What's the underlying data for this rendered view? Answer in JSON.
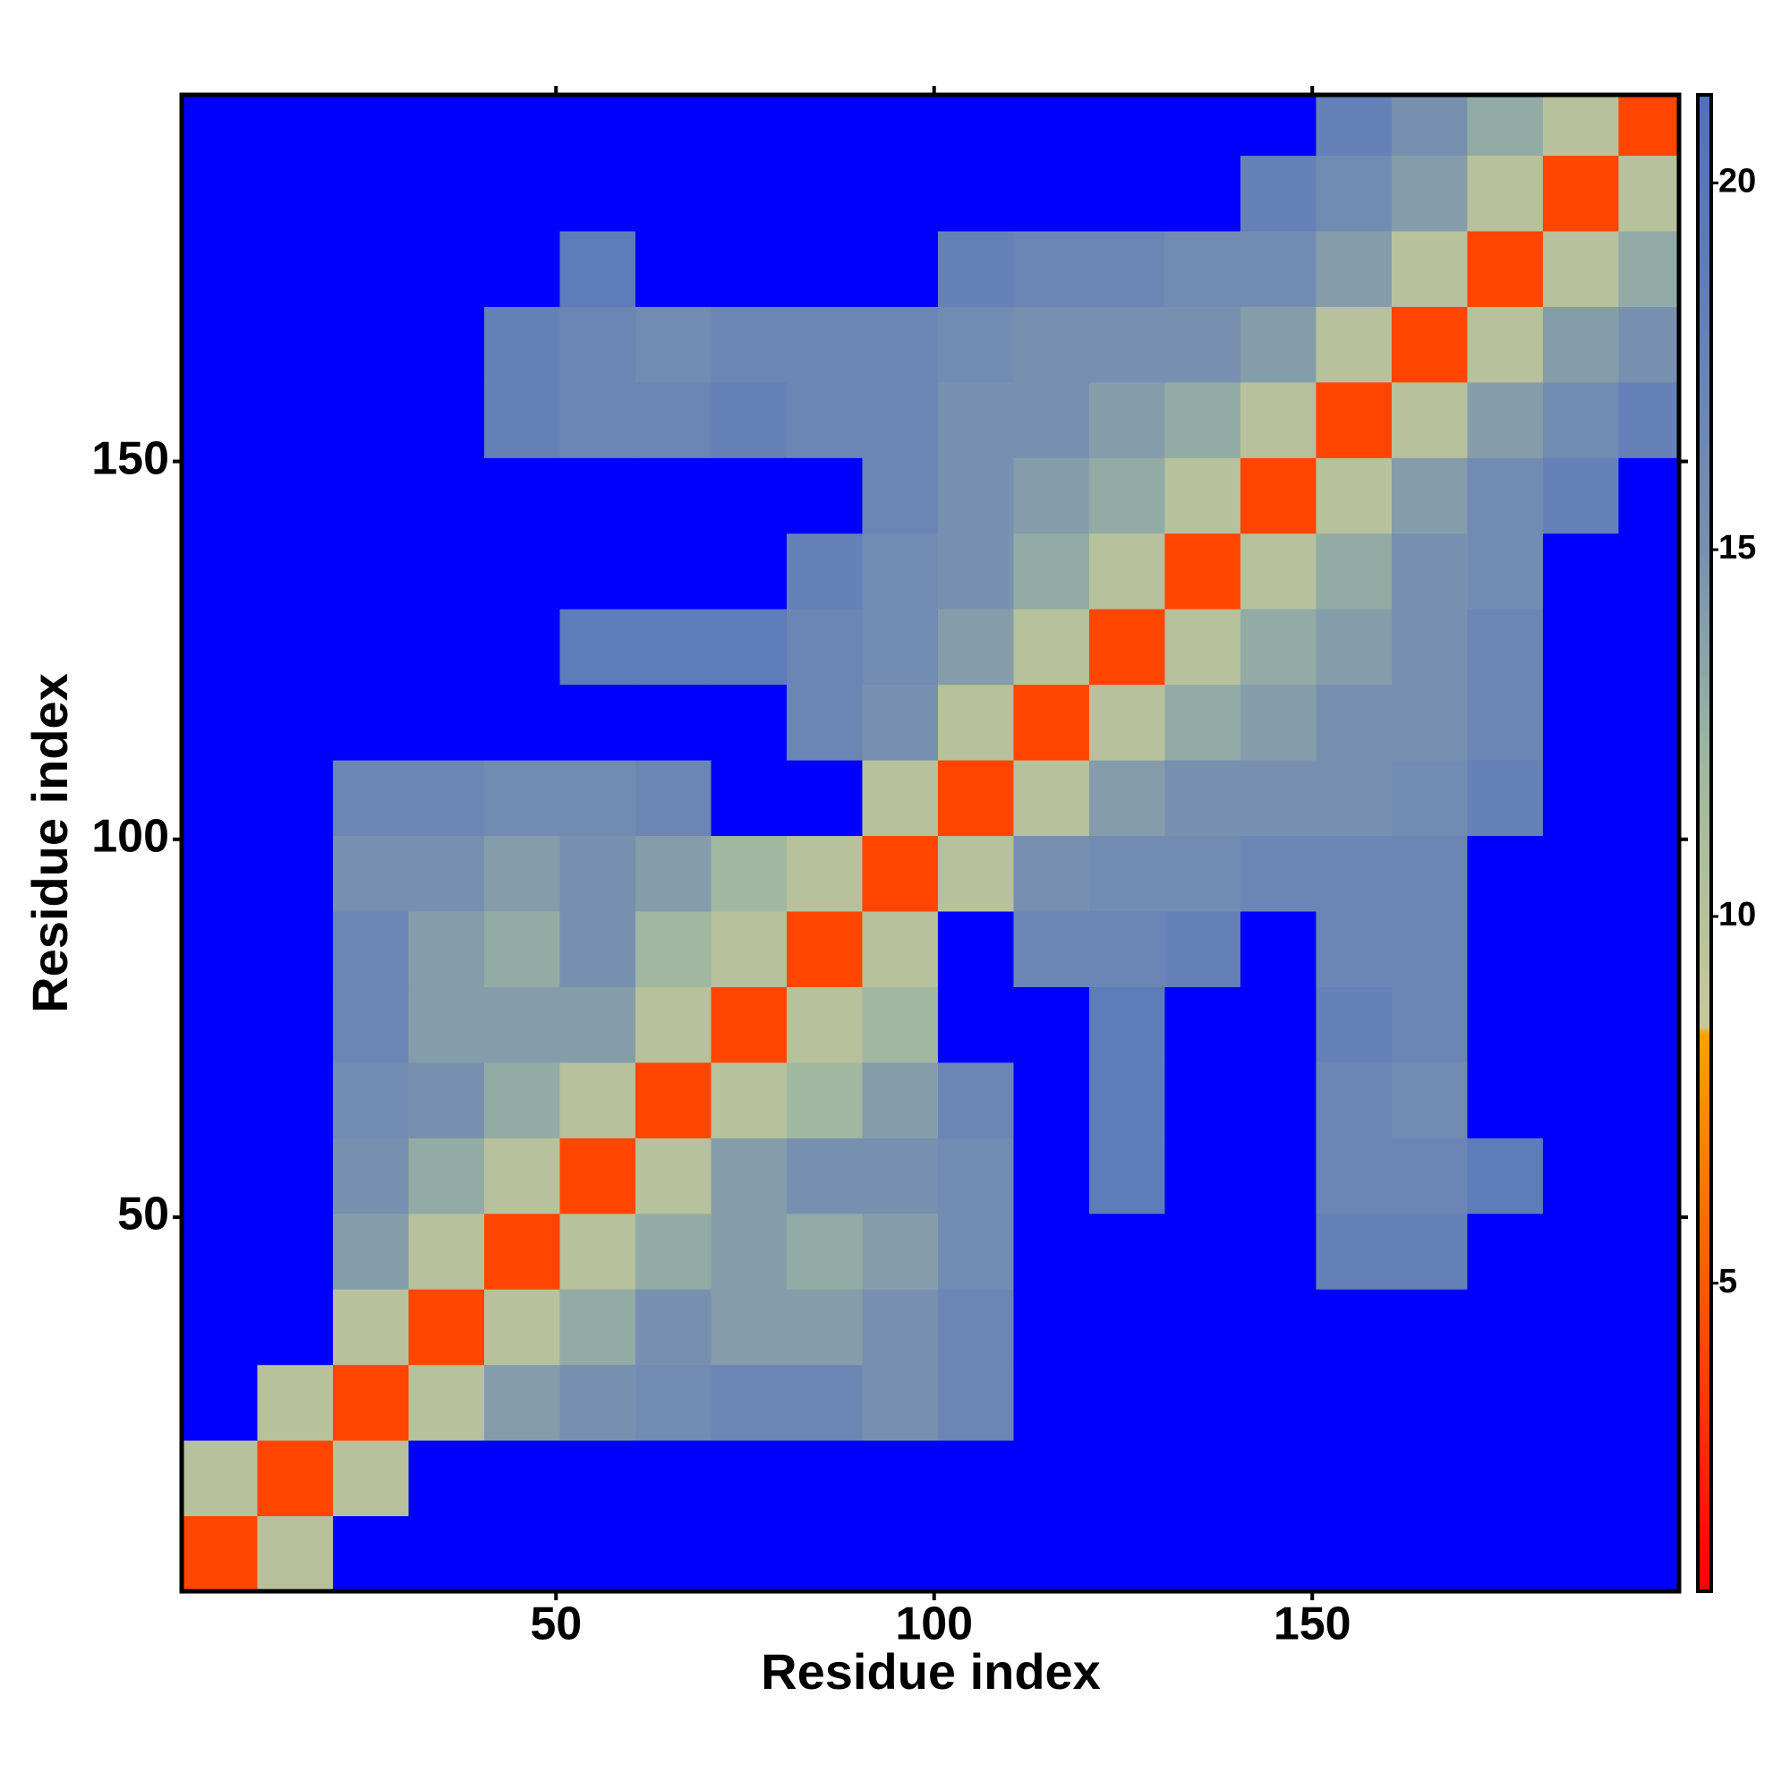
{
  "chart_data": {
    "type": "heatmap",
    "xlabel": "Residue index",
    "ylabel": "Residue index",
    "x_edges": [
      0.5,
      10.5,
      20.5,
      30.5,
      40.5,
      50.5,
      60.5,
      70.5,
      80.5,
      90.5,
      100.5,
      110.5,
      120.5,
      130.5,
      140.5,
      150.5,
      160.5,
      170.5,
      180.5,
      190.5,
      198.5
    ],
    "y_edges": [
      0.5,
      10.5,
      20.5,
      30.5,
      40.5,
      50.5,
      60.5,
      70.5,
      80.5,
      90.5,
      100.5,
      110.5,
      120.5,
      130.5,
      140.5,
      150.5,
      160.5,
      170.5,
      180.5,
      190.5,
      198.5
    ],
    "xlim": [
      0.5,
      198.5
    ],
    "ylim": [
      0.5,
      198.5
    ],
    "xticks": [
      50,
      100,
      150
    ],
    "yticks": [
      50,
      100,
      150
    ],
    "z": [
      [
        4,
        10,
        22,
        22,
        22,
        22,
        22,
        22,
        22,
        22,
        22,
        22,
        22,
        22,
        22,
        22,
        22,
        22,
        22,
        22
      ],
      [
        10,
        4,
        10,
        22,
        22,
        22,
        22,
        22,
        22,
        22,
        22,
        22,
        22,
        22,
        22,
        22,
        22,
        22,
        22,
        22
      ],
      [
        22,
        10,
        4,
        10,
        14,
        15,
        16,
        17,
        17,
        15,
        17,
        22,
        22,
        22,
        22,
        22,
        22,
        22,
        22,
        22
      ],
      [
        22,
        22,
        10,
        4,
        10,
        13,
        15,
        14,
        14,
        15,
        17,
        22,
        22,
        22,
        22,
        22,
        22,
        22,
        22,
        22
      ],
      [
        22,
        22,
        14,
        10,
        4,
        10,
        13,
        14,
        13,
        14,
        16,
        22,
        22,
        22,
        22,
        18,
        18,
        22,
        22,
        22
      ],
      [
        22,
        22,
        15,
        13,
        10,
        4,
        10,
        14,
        15,
        15,
        16,
        22,
        19,
        22,
        22,
        17,
        17,
        19,
        22,
        22
      ],
      [
        22,
        22,
        16,
        15,
        13,
        10,
        4,
        10,
        12,
        14,
        17,
        22,
        19,
        22,
        22,
        17,
        16,
        22,
        22,
        22
      ],
      [
        22,
        22,
        17,
        14,
        14,
        14,
        10,
        4,
        10,
        12,
        22,
        22,
        19,
        22,
        22,
        18,
        17,
        22,
        22,
        22
      ],
      [
        22,
        22,
        17,
        14,
        13,
        15,
        12,
        10,
        4,
        10,
        22,
        17,
        17,
        18,
        22,
        17,
        17,
        22,
        22,
        22
      ],
      [
        22,
        22,
        15,
        15,
        14,
        15,
        14,
        12,
        10,
        4,
        10,
        15,
        16,
        16,
        17,
        17,
        17,
        22,
        22,
        22
      ],
      [
        22,
        22,
        17,
        17,
        16,
        16,
        17,
        22,
        22,
        10,
        4,
        10,
        14,
        15,
        15,
        15,
        16,
        18,
        22,
        22
      ],
      [
        22,
        22,
        22,
        22,
        22,
        22,
        22,
        22,
        17,
        15,
        10,
        4,
        10,
        13,
        14,
        15,
        15,
        17,
        22,
        22
      ],
      [
        22,
        22,
        22,
        22,
        22,
        19,
        19,
        19,
        17,
        16,
        14,
        10,
        4,
        10,
        13,
        14,
        15,
        17,
        22,
        22
      ],
      [
        22,
        22,
        22,
        22,
        22,
        22,
        22,
        22,
        18,
        16,
        15,
        13,
        10,
        4,
        10,
        13,
        15,
        16,
        22,
        22
      ],
      [
        22,
        22,
        22,
        22,
        22,
        22,
        22,
        22,
        22,
        17,
        15,
        14,
        13,
        10,
        4,
        10,
        14,
        16,
        18,
        22
      ],
      [
        22,
        22,
        22,
        22,
        18,
        17,
        17,
        18,
        17,
        17,
        15,
        15,
        14,
        13,
        10,
        4,
        10,
        14,
        16,
        18
      ],
      [
        22,
        22,
        22,
        22,
        18,
        17,
        16,
        17,
        17,
        17,
        16,
        15,
        15,
        15,
        14,
        10,
        4,
        10,
        14,
        15
      ],
      [
        22,
        22,
        22,
        22,
        22,
        19,
        22,
        22,
        22,
        22,
        18,
        17,
        17,
        16,
        16,
        14,
        10,
        4,
        10,
        13
      ],
      [
        22,
        22,
        22,
        22,
        22,
        22,
        22,
        22,
        22,
        22,
        22,
        22,
        22,
        22,
        18,
        16,
        14,
        10,
        4,
        10
      ],
      [
        22,
        22,
        22,
        22,
        22,
        22,
        22,
        22,
        22,
        22,
        22,
        22,
        22,
        22,
        22,
        18,
        15,
        13,
        10,
        4
      ]
    ],
    "clim": [
      0.8,
      21.2
    ],
    "cticks": [
      5,
      10,
      15,
      20
    ],
    "colorscale": [
      [
        0.8,
        "#ff0000"
      ],
      [
        3,
        "#ff3000"
      ],
      [
        8.4,
        "#ffa000"
      ],
      [
        8.5,
        "#c8c898"
      ],
      [
        12,
        "#a0b8a0"
      ],
      [
        15,
        "#7890b0"
      ],
      [
        21.2,
        "#5070c0"
      ]
    ],
    "over_color": "#0000ff"
  }
}
